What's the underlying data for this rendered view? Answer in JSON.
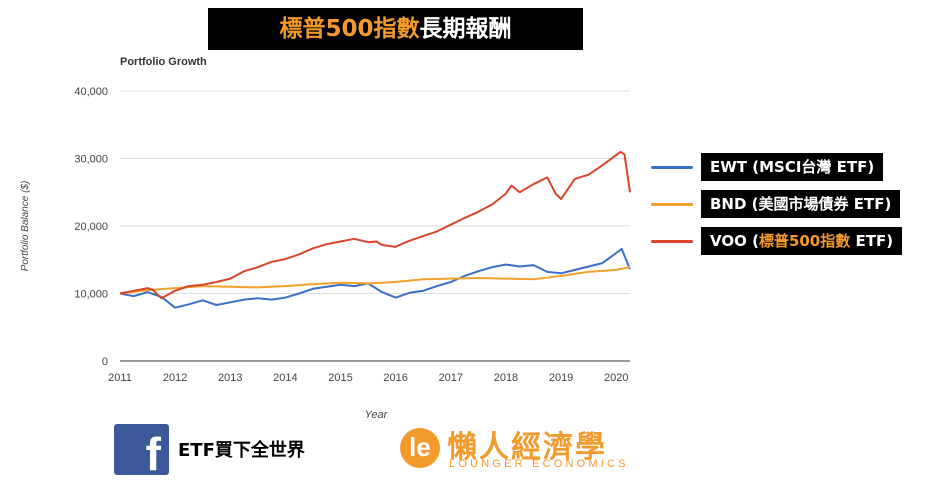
{
  "banner": {
    "highlight": "標普500指數",
    "rest": "長期報酬"
  },
  "chart_data": {
    "type": "line",
    "title": "Portfolio Growth",
    "xlabel": "Year",
    "ylabel": "Portfolio Balance ($)",
    "xlim": [
      2011,
      2020.25
    ],
    "ylim": [
      0,
      40000
    ],
    "grid": true,
    "legend_position": "right",
    "x_ticks": [
      "2011",
      "2012",
      "2013",
      "2014",
      "2015",
      "2016",
      "2017",
      "2018",
      "2019",
      "2020"
    ],
    "y_ticks": [
      "0",
      "10,000",
      "20,000",
      "30,000",
      "40,000"
    ],
    "series": [
      {
        "name": "EWT",
        "color": "#3a6fc9",
        "x": [
          2011,
          2011.25,
          2011.5,
          2011.75,
          2012,
          2012.25,
          2012.5,
          2012.75,
          2013,
          2013.25,
          2013.5,
          2013.75,
          2014,
          2014.25,
          2014.5,
          2014.75,
          2015,
          2015.25,
          2015.5,
          2015.75,
          2016,
          2016.25,
          2016.5,
          2016.75,
          2017,
          2017.25,
          2017.5,
          2017.75,
          2018,
          2018.25,
          2018.5,
          2018.75,
          2019,
          2019.25,
          2019.5,
          2019.75,
          2020,
          2020.1,
          2020.25
        ],
        "y": [
          10000,
          9600,
          10200,
          9500,
          7900,
          8400,
          9000,
          8300,
          8700,
          9100,
          9300,
          9100,
          9400,
          10000,
          10700,
          11000,
          11300,
          11100,
          11500,
          10200,
          9400,
          10100,
          10400,
          11100,
          11700,
          12600,
          13300,
          13900,
          14300,
          14000,
          14200,
          13200,
          13000,
          13500,
          14000,
          14500,
          16000,
          16600,
          13600
        ]
      },
      {
        "name": "BND",
        "color": "#f2a22d",
        "x": [
          2011,
          2011.5,
          2012,
          2012.5,
          2013,
          2013.5,
          2014,
          2014.5,
          2015,
          2015.5,
          2016,
          2016.5,
          2017,
          2017.5,
          2018,
          2018.5,
          2019,
          2019.5,
          2020,
          2020.25
        ],
        "y": [
          10000,
          10500,
          10800,
          11100,
          11000,
          10900,
          11100,
          11400,
          11600,
          11500,
          11700,
          12100,
          12200,
          12300,
          12200,
          12100,
          12600,
          13200,
          13500,
          13900
        ]
      },
      {
        "name": "VOO",
        "color": "#d9452b",
        "x": [
          2011,
          2011.25,
          2011.5,
          2011.6,
          2011.75,
          2012,
          2012.25,
          2012.5,
          2012.75,
          2013,
          2013.25,
          2013.5,
          2013.75,
          2014,
          2014.25,
          2014.5,
          2014.75,
          2015,
          2015.25,
          2015.5,
          2015.65,
          2015.75,
          2016,
          2016.1,
          2016.25,
          2016.5,
          2016.75,
          2017,
          2017.25,
          2017.5,
          2017.75,
          2018,
          2018.1,
          2018.25,
          2018.5,
          2018.75,
          2018.9,
          2019,
          2019.25,
          2019.5,
          2019.75,
          2020,
          2020.08,
          2020.15,
          2020.25
        ],
        "y": [
          10000,
          10400,
          10800,
          10500,
          9300,
          10400,
          11100,
          11300,
          11700,
          12200,
          13300,
          13900,
          14700,
          15100,
          15800,
          16700,
          17300,
          17700,
          18100,
          17600,
          17700,
          17200,
          16900,
          17300,
          17800,
          18500,
          19200,
          20200,
          21200,
          22100,
          23200,
          24800,
          26000,
          25000,
          26200,
          27200,
          24800,
          24000,
          27000,
          27600,
          29000,
          30500,
          31000,
          30600,
          25000
        ]
      }
    ]
  },
  "legend": [
    {
      "prefix": "EWT (MSCI台灣 ETF)",
      "highlight": "",
      "suffix": ""
    },
    {
      "prefix": "BND (美國市場債券 ETF)",
      "highlight": "",
      "suffix": ""
    },
    {
      "prefix": "VOO (",
      "highlight": "標普500指數",
      "suffix": " ETF)"
    }
  ],
  "footer": {
    "fb_icon_letter": "f",
    "fb_label": "ETF買下全世界",
    "brand_icon_letter": "le",
    "brand_cn": "懶人經濟學",
    "brand_en": "LOUNGER ECONOMICS"
  }
}
